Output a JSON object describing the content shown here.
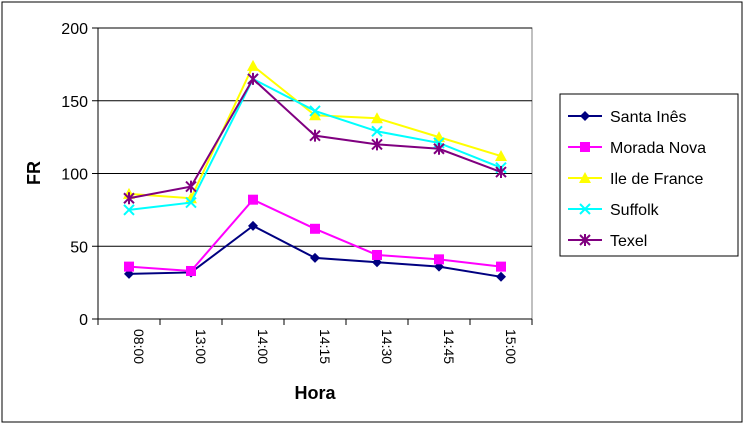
{
  "chart_data": {
    "type": "line",
    "title": "",
    "xlabel": "Hora",
    "ylabel": "FR",
    "categories": [
      "08:00",
      "13:00",
      "14:00",
      "14:15",
      "14:30",
      "14:45",
      "15:00"
    ],
    "ylim": [
      0,
      200
    ],
    "yticks": [
      0,
      50,
      100,
      150,
      200
    ],
    "grid": "horizontal",
    "legend_position": "right",
    "series": [
      {
        "name": "Santa Inês",
        "color": "#000080",
        "marker": "diamond",
        "values": [
          31,
          32,
          64,
          42,
          39,
          36,
          29
        ]
      },
      {
        "name": "Morada Nova",
        "color": "#FF00FF",
        "marker": "square",
        "values": [
          36,
          33,
          82,
          62,
          44,
          41,
          36
        ]
      },
      {
        "name": "Ile de France",
        "color": "#FFFF00",
        "marker": "triangle",
        "values": [
          86,
          83,
          174,
          140,
          138,
          125,
          112
        ]
      },
      {
        "name": "Suffolk",
        "color": "#00FFFF",
        "marker": "x",
        "values": [
          75,
          80,
          165,
          143,
          129,
          121,
          104
        ]
      },
      {
        "name": "Texel",
        "color": "#800080",
        "marker": "star",
        "values": [
          83,
          91,
          165,
          126,
          120,
          117,
          101
        ]
      }
    ]
  }
}
